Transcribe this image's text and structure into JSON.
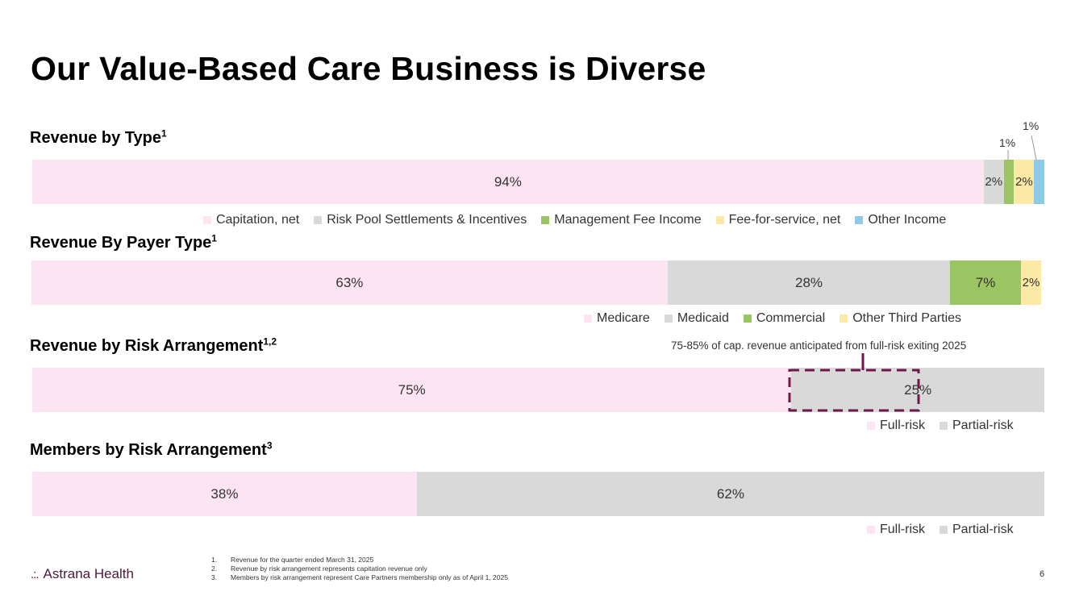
{
  "title": "Our Value-Based Care Business is Diverse",
  "colors": {
    "pink": "#fde4f2",
    "gray": "#d9d9d9",
    "green": "#9bc463",
    "yellow": "#fde9a6",
    "blue": "#8ecae6",
    "callout": "#6b1a4a"
  },
  "chart_data": [
    {
      "type": "bar",
      "orientation": "horizontal-stacked-100",
      "title": "Revenue by Type",
      "title_sup": "1",
      "categories": [
        "Capitation, net",
        "Risk Pool Settlements & Incentives",
        "Management Fee Income",
        "Fee-for-service, net",
        "Other Income"
      ],
      "values": [
        94,
        2,
        1,
        2,
        1
      ],
      "labels": [
        "94%",
        "2%",
        "1%",
        "2%",
        "1%"
      ],
      "series_colors": [
        "#fde4f2",
        "#d9d9d9",
        "#9bc463",
        "#fde9a6",
        "#8ecae6"
      ]
    },
    {
      "type": "bar",
      "orientation": "horizontal-stacked-100",
      "title": "Revenue By Payer Type",
      "title_sup": "1",
      "categories": [
        "Medicare",
        "Medicaid",
        "Commercial",
        "Other Third Parties"
      ],
      "values": [
        63,
        28,
        7,
        2
      ],
      "labels": [
        "63%",
        "28%",
        "7%",
        "2%"
      ],
      "series_colors": [
        "#fde4f2",
        "#d9d9d9",
        "#9bc463",
        "#fde9a6"
      ]
    },
    {
      "type": "bar",
      "orientation": "horizontal-stacked-100",
      "title": "Revenue by Risk Arrangement",
      "title_sup": "1,2",
      "categories": [
        "Full-risk",
        "Partial-risk"
      ],
      "values": [
        75,
        25
      ],
      "labels": [
        "75%",
        "25%"
      ],
      "series_colors": [
        "#fde4f2",
        "#d9d9d9"
      ],
      "annotation": "75-85% of cap. revenue anticipated from full-risk exiting 2025",
      "annotation_range": [
        75,
        85
      ]
    },
    {
      "type": "bar",
      "orientation": "horizontal-stacked-100",
      "title": "Members by Risk Arrangement",
      "title_sup": "3",
      "categories": [
        "Full-risk",
        "Partial-risk"
      ],
      "values": [
        38,
        62
      ],
      "labels": [
        "38%",
        "62%"
      ],
      "series_colors": [
        "#fde4f2",
        "#d9d9d9"
      ]
    }
  ],
  "footnotes": [
    {
      "num": "1.",
      "text": "Revenue for the quarter ended March 31, 2025"
    },
    {
      "num": "2.",
      "text": "Revenue by risk arrangement represents capitation revenue only"
    },
    {
      "num": "3.",
      "text": "Members by risk arrangement represent Care Partners membership only as of April 1, 2025"
    }
  ],
  "logo": {
    "mark": ".:.",
    "text": "Astrana Health"
  },
  "page_number": "6"
}
